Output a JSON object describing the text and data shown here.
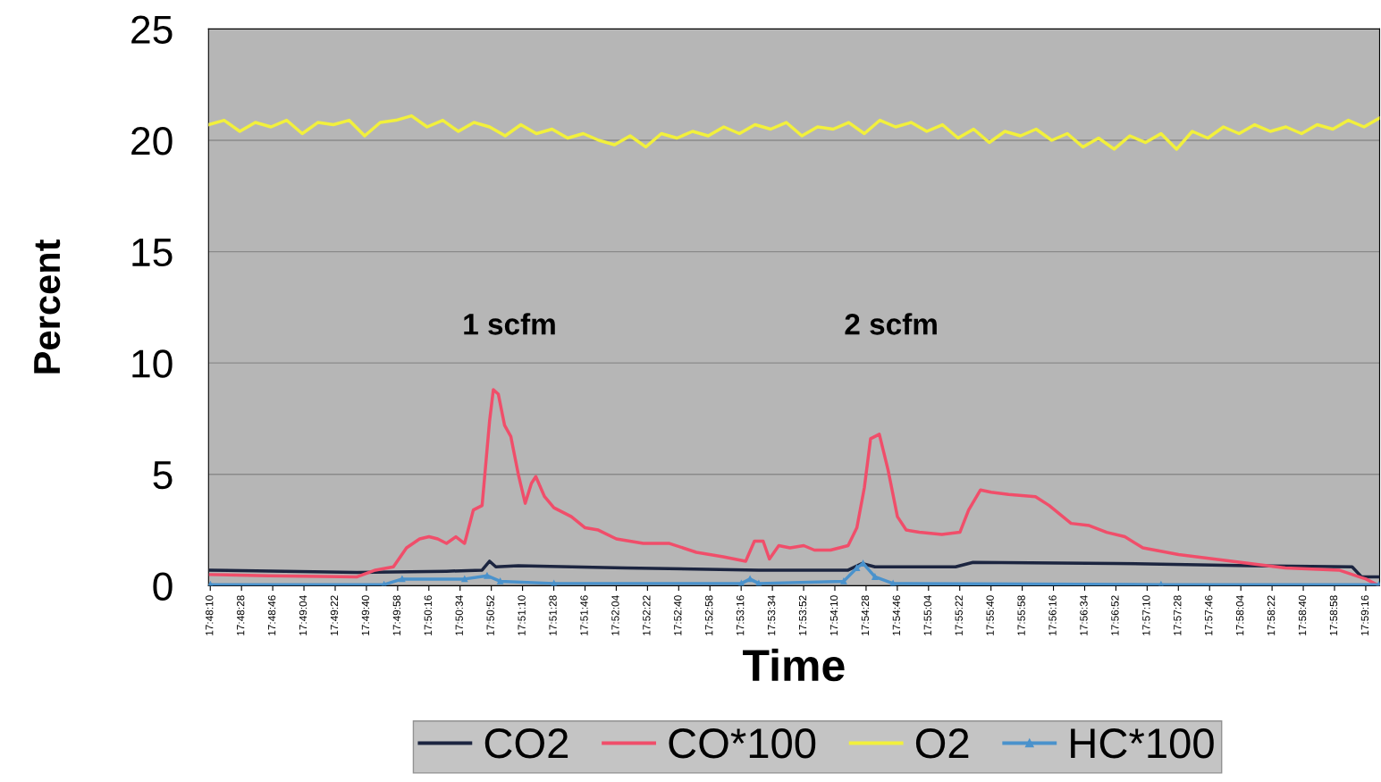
{
  "chart_data": {
    "type": "line",
    "xlabel": "Time",
    "ylabel": "Percent",
    "xlim": [
      17.8025,
      17.99
    ],
    "ylim": [
      0,
      25
    ],
    "yticks": [
      0,
      5,
      10,
      15,
      20,
      25
    ],
    "xticks": [
      {
        "value": 17.802778,
        "label": "17:48:10"
      },
      {
        "value": 17.807778,
        "label": "17:48:28"
      },
      {
        "value": 17.812778,
        "label": "17:48:46"
      },
      {
        "value": 17.817778,
        "label": "17:49:04"
      },
      {
        "value": 17.822778,
        "label": "17:49:22"
      },
      {
        "value": 17.827778,
        "label": "17:49:40"
      },
      {
        "value": 17.832778,
        "label": "17:49:58"
      },
      {
        "value": 17.837778,
        "label": "17:50:16"
      },
      {
        "value": 17.842778,
        "label": "17:50:34"
      },
      {
        "value": 17.847778,
        "label": "17:50:52"
      },
      {
        "value": 17.852778,
        "label": "17:51:10"
      },
      {
        "value": 17.857778,
        "label": "17:51:28"
      },
      {
        "value": 17.862778,
        "label": "17:51:46"
      },
      {
        "value": 17.867778,
        "label": "17:52:04"
      },
      {
        "value": 17.872778,
        "label": "17:52:22"
      },
      {
        "value": 17.877778,
        "label": "17:52:40"
      },
      {
        "value": 17.882778,
        "label": "17:52:58"
      },
      {
        "value": 17.887778,
        "label": "17:53:16"
      },
      {
        "value": 17.892778,
        "label": "17:53:34"
      },
      {
        "value": 17.897778,
        "label": "17:53:52"
      },
      {
        "value": 17.902778,
        "label": "17:54:10"
      },
      {
        "value": 17.907778,
        "label": "17:54:28"
      },
      {
        "value": 17.912778,
        "label": "17:54:46"
      },
      {
        "value": 17.917778,
        "label": "17:55:04"
      },
      {
        "value": 17.922778,
        "label": "17:55:22"
      },
      {
        "value": 17.927778,
        "label": "17:55:40"
      },
      {
        "value": 17.932778,
        "label": "17:55:58"
      },
      {
        "value": 17.937778,
        "label": "17:56:16"
      },
      {
        "value": 17.942778,
        "label": "17:56:34"
      },
      {
        "value": 17.947778,
        "label": "17:56:52"
      },
      {
        "value": 17.952778,
        "label": "17:57:10"
      },
      {
        "value": 17.957778,
        "label": "17:57:28"
      },
      {
        "value": 17.962778,
        "label": "17:57:46"
      },
      {
        "value": 17.967778,
        "label": "17:58:04"
      },
      {
        "value": 17.972778,
        "label": "17:58:22"
      },
      {
        "value": 17.977778,
        "label": "17:58:40"
      },
      {
        "value": 17.982778,
        "label": "17:58:58"
      },
      {
        "value": 17.987778,
        "label": "17:59:16"
      }
    ],
    "grid": "y",
    "legend": "bottom",
    "annotations": [
      "1 scfm",
      "2 scfm"
    ],
    "series": [
      {
        "name": "CO2",
        "color": "#1c2540",
        "x": [
          17.8028,
          17.8263,
          17.8406,
          17.8463,
          17.8475,
          17.8485,
          17.8521,
          17.8692,
          17.8906,
          17.9049,
          17.9071,
          17.9092,
          17.9221,
          17.9249,
          17.9478,
          17.9692,
          17.9856,
          17.9871,
          17.9899
        ],
        "values": [
          0.7,
          0.6,
          0.65,
          0.7,
          1.1,
          0.85,
          0.9,
          0.8,
          0.7,
          0.7,
          1.0,
          0.85,
          0.85,
          1.05,
          1.0,
          0.9,
          0.85,
          0.4,
          0.4
        ]
      },
      {
        "name": "CO*100",
        "color": "#f04e6a",
        "x": [
          17.8028,
          17.8121,
          17.8263,
          17.8292,
          17.8321,
          17.8342,
          17.8363,
          17.8378,
          17.8392,
          17.8406,
          17.8421,
          17.8435,
          17.8449,
          17.8463,
          17.8475,
          17.8481,
          17.8489,
          17.8499,
          17.8509,
          17.8521,
          17.8532,
          17.8542,
          17.8549,
          17.8563,
          17.8578,
          17.8606,
          17.8628,
          17.8649,
          17.8678,
          17.8721,
          17.8763,
          17.8806,
          17.8849,
          17.8885,
          17.8899,
          17.8913,
          17.8923,
          17.8938,
          17.8956,
          17.8978,
          17.8995,
          17.9021,
          17.9049,
          17.9063,
          17.9075,
          17.9085,
          17.9099,
          17.9113,
          17.9128,
          17.9142,
          17.9163,
          17.9199,
          17.9228,
          17.9242,
          17.9261,
          17.9278,
          17.9306,
          17.9349,
          17.9371,
          17.9406,
          17.9435,
          17.9463,
          17.9492,
          17.9521,
          17.9578,
          17.9635,
          17.9692,
          17.9749,
          17.9835,
          17.9878,
          17.9899
        ],
        "values": [
          0.5,
          0.45,
          0.4,
          0.7,
          0.85,
          1.7,
          2.1,
          2.2,
          2.1,
          1.9,
          2.2,
          1.9,
          3.4,
          3.6,
          7.4,
          8.8,
          8.6,
          7.2,
          6.7,
          5.0,
          3.7,
          4.6,
          4.9,
          4.0,
          3.5,
          3.1,
          2.6,
          2.5,
          2.1,
          1.9,
          1.9,
          1.5,
          1.3,
          1.1,
          2.0,
          2.0,
          1.2,
          1.8,
          1.7,
          1.8,
          1.6,
          1.6,
          1.8,
          2.6,
          4.4,
          6.6,
          6.8,
          5.2,
          3.1,
          2.5,
          2.4,
          2.3,
          2.4,
          3.4,
          4.3,
          4.2,
          4.1,
          4.0,
          3.6,
          2.8,
          2.7,
          2.4,
          2.2,
          1.7,
          1.4,
          1.2,
          1.0,
          0.8,
          0.7,
          0.3,
          0.0
        ]
      },
      {
        "name": "O2",
        "color": "#f2f03c",
        "x": [
          17.8025,
          17.805,
          17.8075,
          17.81,
          17.8125,
          17.815,
          17.8175,
          17.82,
          17.8225,
          17.825,
          17.8275,
          17.83,
          17.8325,
          17.835,
          17.8375,
          17.84,
          17.8425,
          17.845,
          17.8475,
          17.85,
          17.8525,
          17.855,
          17.8575,
          17.86,
          17.8625,
          17.865,
          17.8675,
          17.87,
          17.8725,
          17.875,
          17.8775,
          17.88,
          17.8825,
          17.885,
          17.8875,
          17.89,
          17.8925,
          17.895,
          17.8975,
          17.9,
          17.9025,
          17.905,
          17.9075,
          17.91,
          17.9125,
          17.915,
          17.9175,
          17.92,
          17.9225,
          17.925,
          17.9275,
          17.93,
          17.9325,
          17.935,
          17.9375,
          17.94,
          17.9425,
          17.945,
          17.9475,
          17.95,
          17.9525,
          17.955,
          17.9575,
          17.96,
          17.9625,
          17.965,
          17.9675,
          17.97,
          17.9725,
          17.975,
          17.9775,
          17.98,
          17.9825,
          17.985,
          17.9875,
          17.99
        ],
        "values": [
          20.7,
          20.9,
          20.4,
          20.8,
          20.6,
          20.9,
          20.3,
          20.8,
          20.7,
          20.9,
          20.2,
          20.8,
          20.9,
          21.1,
          20.6,
          20.9,
          20.4,
          20.8,
          20.6,
          20.2,
          20.7,
          20.3,
          20.5,
          20.1,
          20.3,
          20.0,
          19.8,
          20.2,
          19.7,
          20.3,
          20.1,
          20.4,
          20.2,
          20.6,
          20.3,
          20.7,
          20.5,
          20.8,
          20.2,
          20.6,
          20.5,
          20.8,
          20.3,
          20.9,
          20.6,
          20.8,
          20.4,
          20.7,
          20.1,
          20.5,
          19.9,
          20.4,
          20.2,
          20.5,
          20.0,
          20.3,
          19.7,
          20.1,
          19.6,
          20.2,
          19.9,
          20.3,
          19.6,
          20.4,
          20.1,
          20.6,
          20.3,
          20.7,
          20.4,
          20.6,
          20.3,
          20.7,
          20.5,
          20.9,
          20.6,
          21.0
        ]
      },
      {
        "name": "HC*100",
        "color": "#4a92cc",
        "marker": "triangle",
        "x": [
          17.8028,
          17.8306,
          17.8335,
          17.8435,
          17.8471,
          17.8492,
          17.8578,
          17.8878,
          17.8892,
          17.8906,
          17.9042,
          17.9063,
          17.9073,
          17.9092,
          17.9121,
          17.955,
          17.9899
        ],
        "values": [
          0.05,
          0.05,
          0.3,
          0.3,
          0.45,
          0.2,
          0.1,
          0.1,
          0.3,
          0.1,
          0.2,
          0.8,
          1.0,
          0.4,
          0.1,
          0.05,
          0.05
        ]
      }
    ]
  }
}
